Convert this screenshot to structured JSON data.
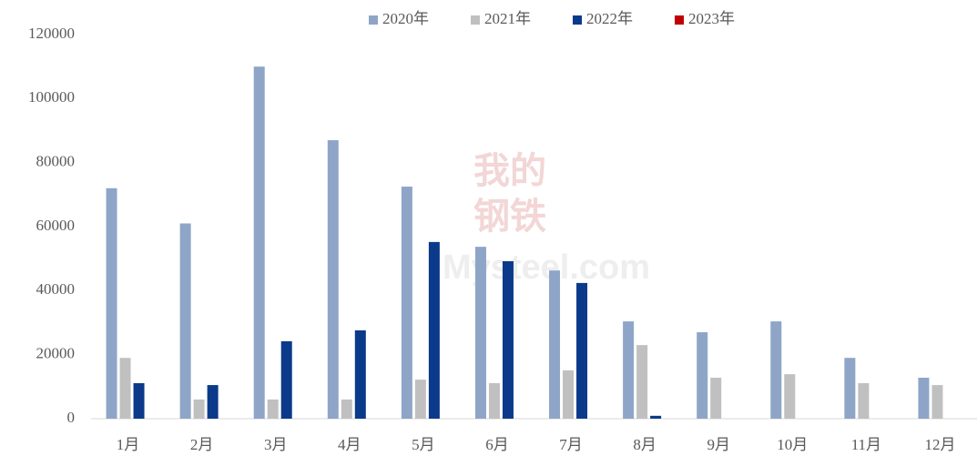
{
  "chart_data": {
    "type": "bar",
    "categories": [
      "1月",
      "2月",
      "3月",
      "4月",
      "5月",
      "6月",
      "7月",
      "8月",
      "9月",
      "10月",
      "11月",
      "12月"
    ],
    "series": [
      {
        "name": "2020年",
        "color": "#8ea5c8",
        "values": [
          72000,
          61000,
          110000,
          87000,
          72500,
          53700,
          46300,
          30400,
          27000,
          30400,
          19000,
          12800
        ]
      },
      {
        "name": "2021年",
        "color": "#c0c0c0",
        "values": [
          19000,
          6000,
          6000,
          6000,
          12200,
          11100,
          15100,
          23000,
          12800,
          13900,
          11100,
          10500
        ]
      },
      {
        "name": "2022年",
        "color": "#0b3a8a",
        "values": [
          11100,
          10500,
          24200,
          27600,
          55200,
          49200,
          42400,
          900,
          null,
          null,
          null,
          null
        ]
      },
      {
        "name": "2023年",
        "color": "#c00000",
        "values": [
          null,
          null,
          null,
          null,
          null,
          null,
          null,
          null,
          null,
          null,
          null,
          null
        ]
      }
    ],
    "ylim": [
      0,
      120000
    ],
    "yticks": [
      0,
      20000,
      40000,
      60000,
      80000,
      100000,
      120000
    ],
    "grid": false,
    "legend": "top",
    "watermark": [
      "我的",
      "钢铁",
      "Mysteel.com"
    ]
  }
}
